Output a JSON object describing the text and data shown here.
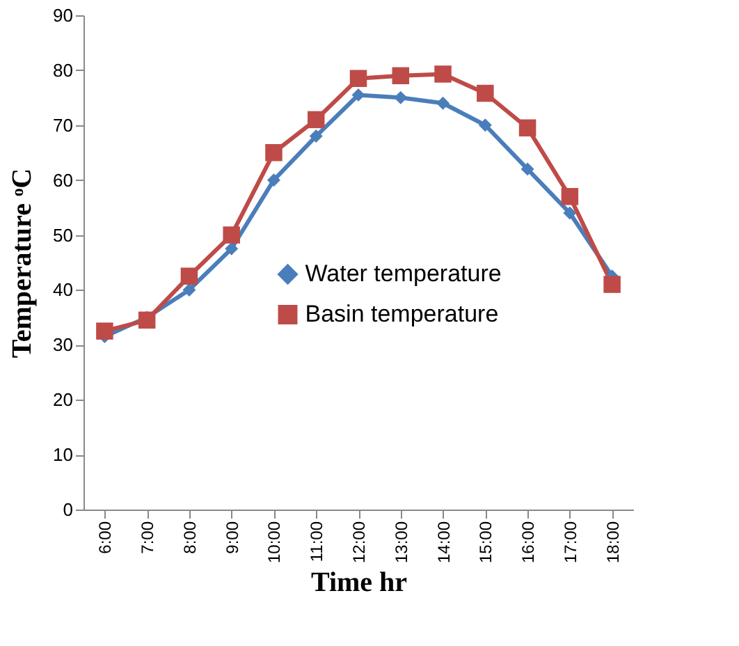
{
  "chart_data": {
    "type": "line",
    "xlabel": "Time hr",
    "ylabel": "Temperature ᵒC",
    "categories": [
      "6:00",
      "7:00",
      "8:00",
      "9:00",
      "10:00",
      "11:00",
      "12:00",
      "13:00",
      "14:00",
      "15:00",
      "16:00",
      "17:00",
      "18:00"
    ],
    "series": [
      {
        "name": "Water temperature",
        "color": "#4a7ebb",
        "marker": "diamond",
        "values": [
          31.5,
          35,
          40,
          47.5,
          60,
          68,
          75.5,
          75,
          74,
          70,
          62,
          54,
          42.5
        ]
      },
      {
        "name": "Basin temperature",
        "color": "#be4b48",
        "marker": "square",
        "values": [
          32.5,
          34.5,
          42.5,
          50,
          65,
          71,
          78.5,
          79,
          79.3,
          75.8,
          69.5,
          57,
          41
        ]
      }
    ],
    "ylim": [
      0,
      90
    ],
    "yticks": [
      0,
      10,
      20,
      30,
      40,
      50,
      60,
      70,
      80,
      90
    ],
    "grid": false,
    "legend": "right"
  }
}
